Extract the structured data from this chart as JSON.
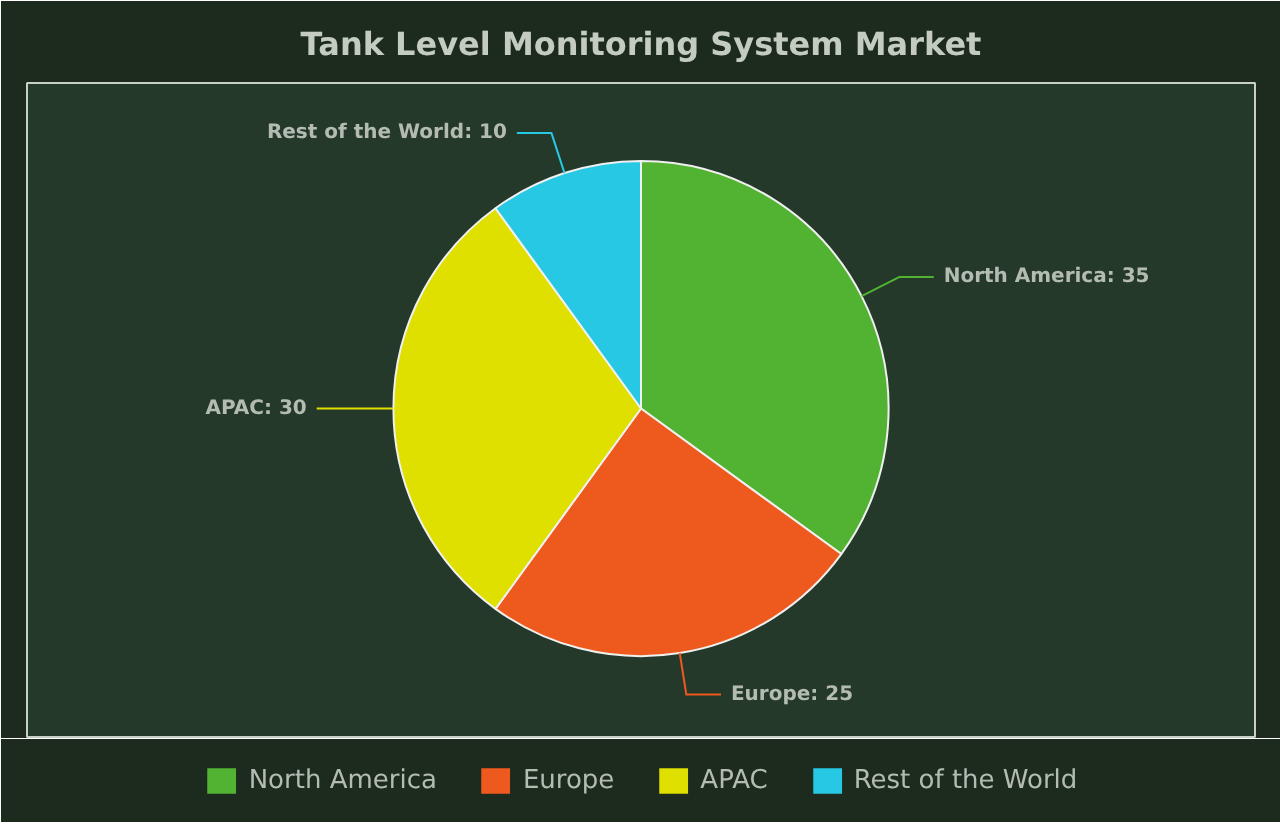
{
  "chart_data": {
    "type": "pie",
    "title": "Tank Level Monitoring System Market",
    "categories": [
      "North America",
      "Europe",
      "APAC",
      "Rest of the World"
    ],
    "values": [
      35,
      25,
      30,
      10
    ],
    "colors": [
      "#52b332",
      "#ee5a1e",
      "#dfdf00",
      "#27c8e3"
    ],
    "value_labels": [
      "North America: 35",
      "Europe: 25",
      "APAC: 30",
      "Rest of the World: 10"
    ],
    "legend": "bottom"
  }
}
